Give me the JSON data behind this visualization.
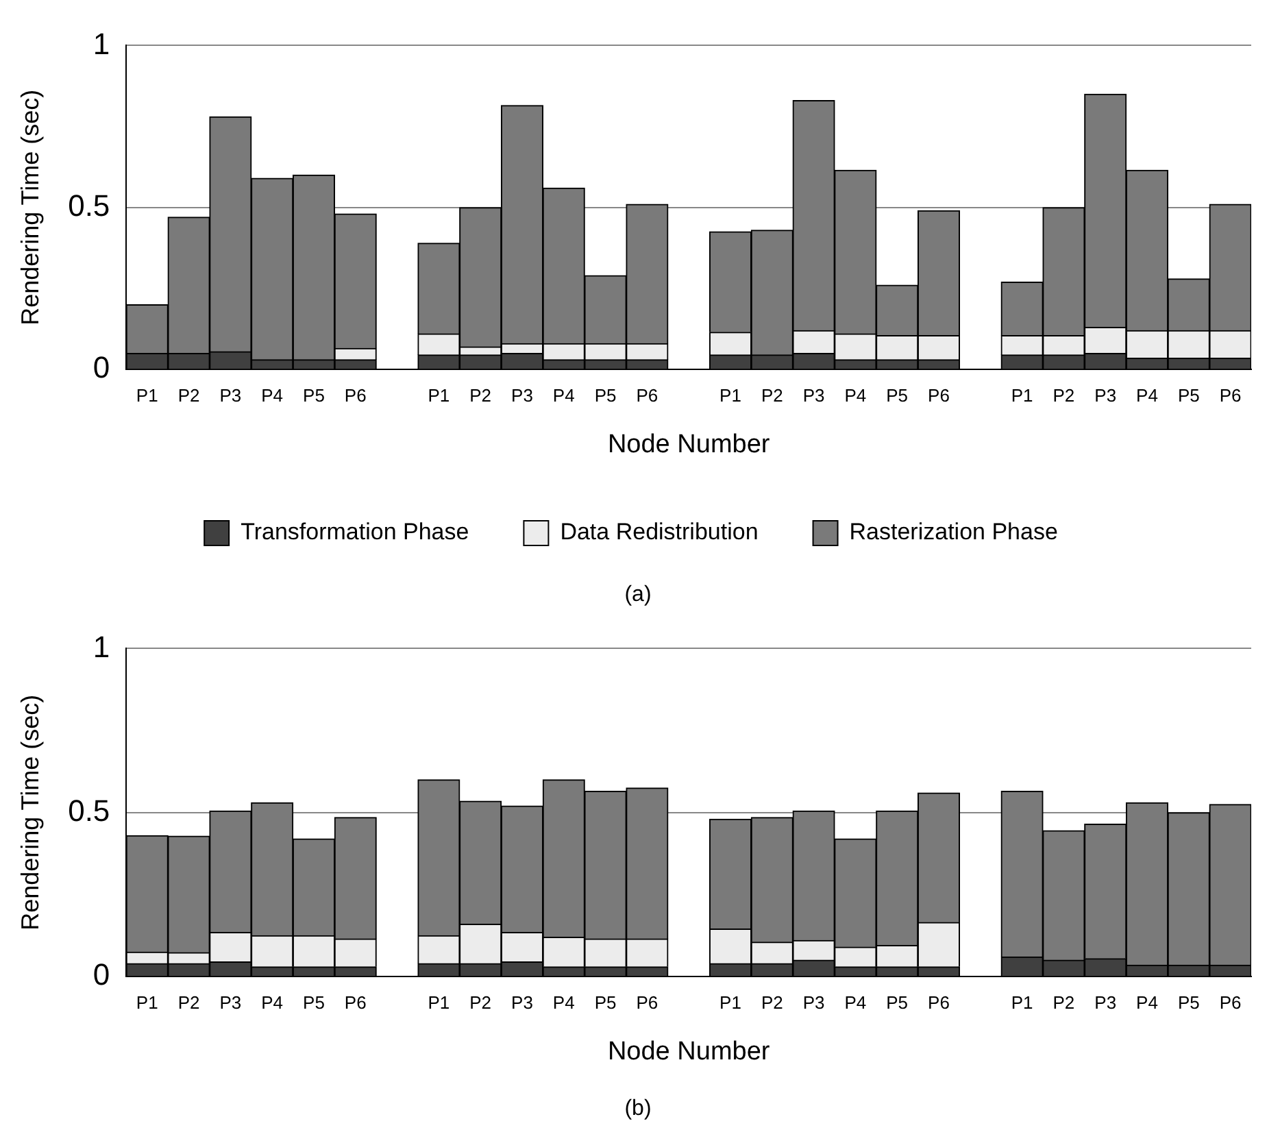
{
  "chart_data": [
    {
      "type": "bar",
      "stacked": true,
      "ylabel": "Rendering Time (sec)",
      "xlabel": "Node Number",
      "ylim": [
        0,
        1
      ],
      "yticks": [
        0,
        0.5,
        1
      ],
      "grid": "y",
      "legend": "bottom",
      "annotations": [
        "(a)"
      ],
      "categories": [
        "P1",
        "P2",
        "P3",
        "P4",
        "P5",
        "P6",
        null,
        "P1",
        "P2",
        "P3",
        "P4",
        "P5",
        "P6",
        null,
        "P1",
        "P2",
        "P3",
        "P4",
        "P5",
        "P6",
        null,
        "P1",
        "P2",
        "P3",
        "P4",
        "P5",
        "P6"
      ],
      "series": [
        {
          "name": "Transformation Phase",
          "color": "#404040",
          "values": [
            0.05,
            0.05,
            0.055,
            0.03,
            0.03,
            0.03,
            null,
            0.045,
            0.045,
            0.05,
            0.03,
            0.03,
            0.03,
            null,
            0.045,
            0.045,
            0.05,
            0.03,
            0.03,
            0.03,
            null,
            0.045,
            0.045,
            0.05,
            0.035,
            0.035,
            0.035
          ]
        },
        {
          "name": "Data Redistribution",
          "color": "#ececec",
          "values": [
            0,
            0,
            0,
            0,
            0,
            0.035,
            null,
            0.065,
            0.025,
            0.03,
            0.05,
            0.05,
            0.05,
            null,
            0.07,
            0,
            0.07,
            0.08,
            0.075,
            0.075,
            null,
            0.06,
            0.06,
            0.08,
            0.085,
            0.085,
            0.085
          ]
        },
        {
          "name": "Rasterization Phase",
          "color": "#7a7a7a",
          "values": [
            0.15,
            0.42,
            0.725,
            0.56,
            0.57,
            0.415,
            null,
            0.28,
            0.43,
            0.735,
            0.48,
            0.21,
            0.43,
            null,
            0.31,
            0.385,
            0.71,
            0.505,
            0.155,
            0.385,
            null,
            0.165,
            0.395,
            0.72,
            0.495,
            0.16,
            0.39
          ]
        }
      ]
    },
    {
      "type": "bar",
      "stacked": true,
      "ylabel": "Rendering Time (sec)",
      "xlabel": "Node Number",
      "ylim": [
        0,
        1
      ],
      "yticks": [
        0,
        0.5,
        1
      ],
      "grid": "y",
      "annotations": [
        "(b)"
      ],
      "categories": [
        "P1",
        "P2",
        "P3",
        "P4",
        "P5",
        "P6",
        null,
        "P1",
        "P2",
        "P3",
        "P4",
        "P5",
        "P6",
        null,
        "P1",
        "P2",
        "P3",
        "P4",
        "P5",
        "P6",
        null,
        "P1",
        "P2",
        "P3",
        "P4",
        "P5",
        "P6"
      ],
      "series": [
        {
          "color": "#404040",
          "values": [
            0.04,
            0.04,
            0.045,
            0.03,
            0.03,
            0.03,
            null,
            0.04,
            0.04,
            0.045,
            0.03,
            0.03,
            0.03,
            null,
            0.04,
            0.04,
            0.05,
            0.03,
            0.03,
            0.03,
            null,
            0.06,
            0.05,
            0.055,
            0.035,
            0.035,
            0.035
          ]
        },
        {
          "color": "#ececec",
          "values": [
            0.035,
            0.033,
            0.09,
            0.095,
            0.095,
            0.085,
            null,
            0.085,
            0.12,
            0.09,
            0.09,
            0.085,
            0.085,
            null,
            0.105,
            0.065,
            0.06,
            0.06,
            0.065,
            0.135,
            null,
            0,
            0,
            0,
            0,
            0,
            0
          ]
        },
        {
          "color": "#7a7a7a",
          "values": [
            0.355,
            0.355,
            0.37,
            0.405,
            0.295,
            0.37,
            null,
            0.475,
            0.375,
            0.385,
            0.48,
            0.45,
            0.46,
            null,
            0.335,
            0.38,
            0.395,
            0.33,
            0.41,
            0.395,
            null,
            0.505,
            0.395,
            0.41,
            0.495,
            0.465,
            0.49
          ]
        }
      ]
    }
  ]
}
